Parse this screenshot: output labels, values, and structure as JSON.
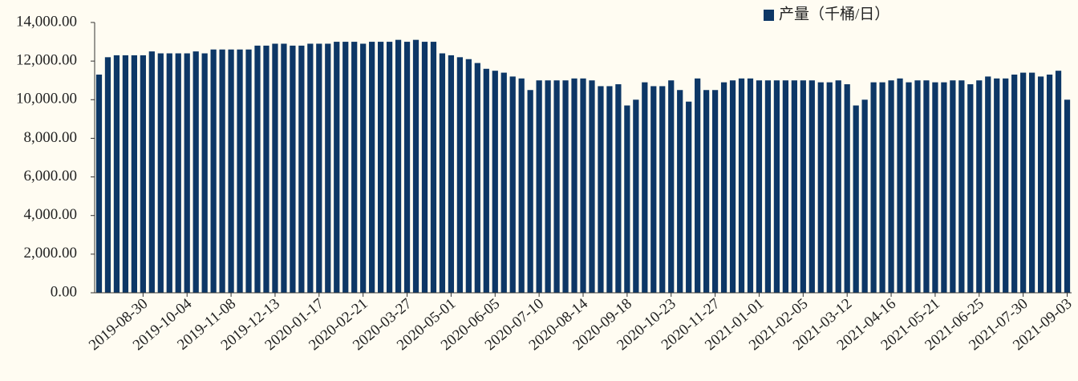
{
  "chart_data": {
    "type": "bar",
    "categories": [
      null,
      null,
      null,
      null,
      null,
      "2019-08-30",
      null,
      null,
      null,
      null,
      "2019-10-04",
      null,
      null,
      null,
      null,
      "2019-11-08",
      null,
      null,
      null,
      null,
      "2019-12-13",
      null,
      null,
      null,
      null,
      "2020-01-17",
      null,
      null,
      null,
      null,
      "2020-02-21",
      null,
      null,
      null,
      null,
      "2020-03-27",
      null,
      null,
      null,
      null,
      "2020-05-01",
      null,
      null,
      null,
      null,
      "2020-06-05",
      null,
      null,
      null,
      null,
      "2020-07-10",
      null,
      null,
      null,
      null,
      "2020-08-14",
      null,
      null,
      null,
      null,
      "2020-09-18",
      null,
      null,
      null,
      null,
      "2020-10-23",
      null,
      null,
      null,
      null,
      "2020-11-27",
      null,
      null,
      null,
      null,
      "2021-01-01",
      null,
      null,
      null,
      null,
      "2021-02-05",
      null,
      null,
      null,
      null,
      "2021-03-12",
      null,
      null,
      null,
      null,
      "2021-04-16",
      null,
      null,
      null,
      null,
      "2021-05-21",
      null,
      null,
      null,
      null,
      "2021-06-25",
      null,
      null,
      null,
      null,
      "2021-07-30",
      null,
      null,
      null,
      null,
      "2021-09-03"
    ],
    "series": [
      {
        "name": "产量（千桶/日）",
        "color": "#0d3766",
        "values": [
          11300,
          12200,
          12300,
          12300,
          12300,
          12300,
          12500,
          12400,
          12400,
          12400,
          12400,
          12500,
          12400,
          12600,
          12600,
          12600,
          12600,
          12600,
          12800,
          12800,
          12900,
          12900,
          12800,
          12800,
          12900,
          12900,
          12900,
          13000,
          13000,
          13000,
          12900,
          13000,
          13000,
          13000,
          13100,
          13000,
          13100,
          13000,
          13000,
          12400,
          12300,
          12200,
          12100,
          11900,
          11600,
          11500,
          11400,
          11200,
          11100,
          10500,
          11000,
          11000,
          11000,
          11000,
          11100,
          11100,
          11000,
          10700,
          10700,
          10800,
          9700,
          10000,
          10900,
          10700,
          10700,
          11000,
          10500,
          9900,
          11100,
          10500,
          10500,
          10900,
          11000,
          11100,
          11100,
          11000,
          11000,
          11000,
          11000,
          11000,
          11000,
          11000,
          10900,
          10900,
          11000,
          10800,
          9700,
          10000,
          10900,
          10900,
          11000,
          11100,
          10900,
          11000,
          11000,
          10900,
          10900,
          11000,
          11000,
          10800,
          11000,
          11200,
          11100,
          11100,
          11300,
          11400,
          11400,
          11200,
          11300,
          11500,
          10000
        ]
      }
    ],
    "ylim": [
      0,
      14000
    ],
    "yticks": [
      {
        "value": 0,
        "label": "0.00"
      },
      {
        "value": 2000,
        "label": "2,000.00"
      },
      {
        "value": 4000,
        "label": "4,000.00"
      },
      {
        "value": 6000,
        "label": "6,000.00"
      },
      {
        "value": 8000,
        "label": "8,000.00"
      },
      {
        "value": 10000,
        "label": "10,000.00"
      },
      {
        "value": 12000,
        "label": "12,000.00"
      },
      {
        "value": 14000,
        "label": "14,000.00"
      }
    ],
    "legend": "top-right"
  }
}
